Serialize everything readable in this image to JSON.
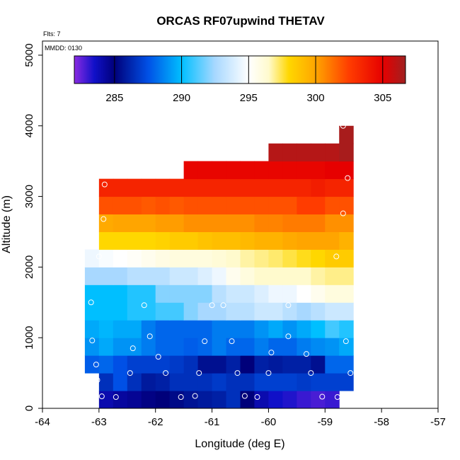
{
  "chart_data": {
    "type": "heatmap",
    "title": "ORCAS RF07upwind THETAV",
    "xlabel": "Longitude (deg E)",
    "ylabel": "Altitude (m)",
    "annotations": [
      "Flts: 7",
      "MMDD: 0130"
    ],
    "xlim": [
      -64,
      -57
    ],
    "ylim": [
      0,
      5200
    ],
    "x_ticks": [
      -64,
      -63,
      -62,
      -61,
      -60,
      -59,
      -58,
      -57
    ],
    "x_tick_labels": [
      "-64",
      "-63",
      "-62",
      "-61",
      "-60",
      "-59",
      "-58",
      "-57"
    ],
    "y_ticks": [
      0,
      1000,
      2000,
      3000,
      4000,
      5000
    ],
    "y_tick_labels": [
      "0",
      "1000",
      "2000",
      "3000",
      "4000",
      "5000"
    ],
    "colorbar": {
      "vmin": 282,
      "vmax": 306.7,
      "ticks": [
        285,
        290,
        295,
        300,
        305
      ],
      "tick_labels": [
        "285",
        "290",
        "295",
        "300",
        "305"
      ],
      "colormap_stops": [
        {
          "v": 282,
          "color": "#8a2be2"
        },
        {
          "v": 283.5,
          "color": "#1010c8"
        },
        {
          "v": 285,
          "color": "#00007a"
        },
        {
          "v": 287.5,
          "color": "#0050e6"
        },
        {
          "v": 290,
          "color": "#00bfff"
        },
        {
          "v": 292.5,
          "color": "#a8d8ff"
        },
        {
          "v": 295,
          "color": "#ffffff"
        },
        {
          "v": 296.5,
          "color": "#fffacd"
        },
        {
          "v": 298,
          "color": "#ffd700"
        },
        {
          "v": 300,
          "color": "#ffa500"
        },
        {
          "v": 302.5,
          "color": "#ff3c00"
        },
        {
          "v": 305,
          "color": "#e60000"
        },
        {
          "v": 306.7,
          "color": "#a02020"
        }
      ]
    },
    "x_edges": [
      -63.25,
      -63.0,
      -62.75,
      -62.5,
      -62.25,
      -62.0,
      -61.75,
      -61.5,
      -61.25,
      -61.0,
      -60.75,
      -60.5,
      -60.25,
      -60.0,
      -59.75,
      -59.5,
      -59.25,
      -59.0,
      -58.75,
      -58.5
    ],
    "row_height_m": 250,
    "cells": [
      {
        "y0": 0,
        "x0": -63.0,
        "x1": -58.75,
        "values": [
          284.0,
          284.3,
          284.5,
          284.8,
          285.0,
          285.3,
          285.6,
          285.8,
          286.0,
          286.5,
          285.0,
          284.0,
          283.5,
          283.3,
          283.0,
          282.8,
          283.0
        ]
      },
      {
        "y0": 250,
        "x0": -63.0,
        "x1": -58.5,
        "values": [
          286.5,
          287.5,
          286.5,
          285.8,
          286.0,
          286.5,
          286.5,
          286.5,
          286.8,
          286.5,
          286.5,
          287.0,
          287.0,
          287.0,
          286.8,
          287.0,
          287.0,
          287.0
        ]
      },
      {
        "y0": 500,
        "x0": -63.25,
        "x1": -58.5,
        "values": [
          287.8,
          288.0,
          287.5,
          287.0,
          287.0,
          287.0,
          286.8,
          286.5,
          285.5,
          285.5,
          286.0,
          285.0,
          286.0,
          285.8,
          286.0,
          286.0,
          285.5,
          288.0,
          288.0
        ]
      },
      {
        "y0": 750,
        "x0": -63.25,
        "x1": -58.5,
        "values": [
          289.0,
          289.5,
          289.0,
          289.0,
          288.5,
          288.0,
          288.0,
          287.8,
          288.0,
          288.5,
          288.0,
          288.0,
          288.5,
          288.0,
          288.0,
          288.5,
          288.8,
          289.0,
          289.5
        ]
      },
      {
        "y0": 1000,
        "x0": -63.25,
        "x1": -58.5,
        "values": [
          289.5,
          289.8,
          289.5,
          289.5,
          288.5,
          288.0,
          288.0,
          288.0,
          288.0,
          288.5,
          288.5,
          288.5,
          289.0,
          289.5,
          289.0,
          289.5,
          290.0,
          291.0,
          290.5
        ]
      },
      {
        "y0": 1250,
        "x0": -63.25,
        "x1": -58.5,
        "values": [
          290.0,
          290.0,
          290.0,
          290.5,
          290.5,
          291.0,
          291.0,
          292.0,
          292.5,
          292.5,
          293.0,
          293.0,
          293.5,
          293.5,
          293.0,
          292.5,
          293.0,
          293.5,
          293.5
        ]
      },
      {
        "y0": 1500,
        "x0": -63.25,
        "x1": -58.5,
        "values": [
          290.0,
          290.0,
          290.0,
          290.5,
          290.5,
          292.0,
          292.0,
          292.0,
          292.0,
          293.0,
          293.5,
          293.5,
          294.0,
          294.5,
          294.5,
          295.0,
          295.5,
          296.0,
          296.0
        ]
      },
      {
        "y0": 1750,
        "x0": -63.25,
        "x1": -58.5,
        "values": [
          292.5,
          292.5,
          292.5,
          293.0,
          293.0,
          293.0,
          293.5,
          293.5,
          294.0,
          294.5,
          295.5,
          296.0,
          296.5,
          296.5,
          296.5,
          296.5,
          296.8,
          297.0,
          297.0
        ]
      },
      {
        "y0": 2000,
        "x0": -63.25,
        "x1": -58.5,
        "values": [
          294.5,
          294.8,
          295.0,
          295.2,
          295.5,
          295.8,
          296.0,
          296.0,
          296.0,
          296.2,
          296.5,
          296.8,
          297.0,
          297.2,
          297.5,
          297.8,
          298.0,
          298.5,
          298.5
        ]
      },
      {
        "y0": 2250,
        "x0": -63.0,
        "x1": -58.5,
        "values": [
          298.0,
          298.0,
          298.0,
          298.0,
          298.2,
          298.5,
          298.5,
          298.8,
          299.0,
          299.0,
          299.2,
          299.5,
          299.5,
          299.8,
          300.0,
          300.0,
          300.0,
          299.5
        ]
      },
      {
        "y0": 2500,
        "x0": -63.0,
        "x1": -58.5,
        "values": [
          299.8,
          300.0,
          300.0,
          300.0,
          300.2,
          300.2,
          300.5,
          300.5,
          300.5,
          300.5,
          300.5,
          300.8,
          300.8,
          301.0,
          301.0,
          301.0,
          300.5,
          300.5
        ]
      },
      {
        "y0": 2750,
        "x0": -63.0,
        "x1": -58.5,
        "values": [
          302.0,
          302.0,
          302.0,
          301.8,
          302.0,
          301.8,
          302.0,
          302.0,
          302.0,
          302.0,
          302.0,
          302.0,
          302.0,
          302.0,
          302.5,
          302.5,
          302.0,
          302.0
        ]
      },
      {
        "y0": 3000,
        "x0": -63.0,
        "x1": -58.5,
        "values": [
          303.5,
          303.5,
          303.5,
          303.5,
          303.5,
          303.5,
          303.5,
          303.5,
          303.5,
          303.5,
          303.5,
          303.5,
          303.5,
          303.5,
          303.5,
          303.8,
          303.5,
          303.5
        ]
      },
      {
        "y0": 3250,
        "x0": -61.5,
        "x1": -58.5,
        "values": [
          304.8,
          304.8,
          304.8,
          304.8,
          304.8,
          304.8,
          304.8,
          304.8,
          304.8,
          304.8,
          305.0,
          305.0
        ]
      },
      {
        "y0": 3500,
        "x0": -60.0,
        "x1": -58.5,
        "values": [
          306.2,
          306.2,
          306.2,
          306.2,
          306.2,
          306.5
        ]
      },
      {
        "y0": 3750,
        "x0": -58.75,
        "x1": -58.5,
        "values": [
          306.5
        ]
      }
    ],
    "sample_points": [
      [
        -62.95,
        170
      ],
      [
        -62.7,
        160
      ],
      [
        -61.55,
        160
      ],
      [
        -61.3,
        175
      ],
      [
        -60.42,
        175
      ],
      [
        -60.2,
        160
      ],
      [
        -59.05,
        165
      ],
      [
        -58.78,
        160
      ],
      [
        -63.03,
        400
      ],
      [
        -63.05,
        620
      ],
      [
        -62.45,
        500
      ],
      [
        -61.82,
        500
      ],
      [
        -61.23,
        500
      ],
      [
        -60.55,
        500
      ],
      [
        -60.0,
        500
      ],
      [
        -59.25,
        500
      ],
      [
        -58.55,
        500
      ],
      [
        -61.95,
        730
      ],
      [
        -62.4,
        850
      ],
      [
        -59.95,
        790
      ],
      [
        -59.33,
        770
      ],
      [
        -63.12,
        960
      ],
      [
        -62.1,
        1020
      ],
      [
        -61.13,
        950
      ],
      [
        -60.65,
        950
      ],
      [
        -59.65,
        1020
      ],
      [
        -58.63,
        950
      ],
      [
        -63.14,
        1500
      ],
      [
        -62.2,
        1460
      ],
      [
        -61.0,
        1460
      ],
      [
        -60.8,
        1460
      ],
      [
        -59.65,
        1460
      ],
      [
        -63.0,
        2150
      ],
      [
        -58.8,
        2150
      ],
      [
        -62.92,
        2680
      ],
      [
        -58.68,
        2760
      ],
      [
        -62.9,
        3170
      ],
      [
        -58.6,
        3260
      ],
      [
        -58.68,
        4000
      ]
    ]
  }
}
